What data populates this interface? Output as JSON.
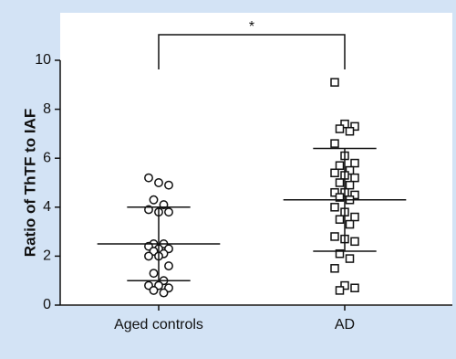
{
  "chart_data": {
    "type": "dotplot",
    "y_label": "Ratio of ThTF to IAF",
    "categories": [
      "Aged controls",
      "AD"
    ],
    "markers": [
      "circle",
      "square"
    ],
    "points": [
      [
        5.2,
        5.0,
        4.9,
        4.3,
        4.1,
        3.9,
        3.8,
        3.8,
        2.5,
        2.5,
        2.4,
        2.3,
        2.3,
        2.2,
        2.1,
        2.0,
        2.0,
        1.6,
        1.3,
        1.0,
        0.8,
        0.8,
        0.7,
        0.6,
        0.5
      ],
      [
        9.1,
        7.4,
        7.3,
        7.2,
        7.1,
        6.6,
        6.1,
        5.8,
        5.7,
        5.5,
        5.4,
        5.3,
        5.2,
        5.0,
        4.9,
        4.6,
        4.6,
        4.5,
        4.4,
        4.3,
        4.0,
        3.8,
        3.6,
        3.5,
        3.3,
        2.8,
        2.7,
        2.6,
        2.1,
        1.9,
        1.5,
        0.8,
        0.7,
        0.6
      ]
    ],
    "mean": [
      2.5,
      4.3
    ],
    "error_upper": [
      4.0,
      6.4
    ],
    "error_lower": [
      1.0,
      2.2
    ],
    "annotation": "*",
    "ylim": [
      0,
      10
    ],
    "yticks": [
      0,
      2,
      4,
      6,
      8,
      10
    ],
    "color": "#111111"
  }
}
